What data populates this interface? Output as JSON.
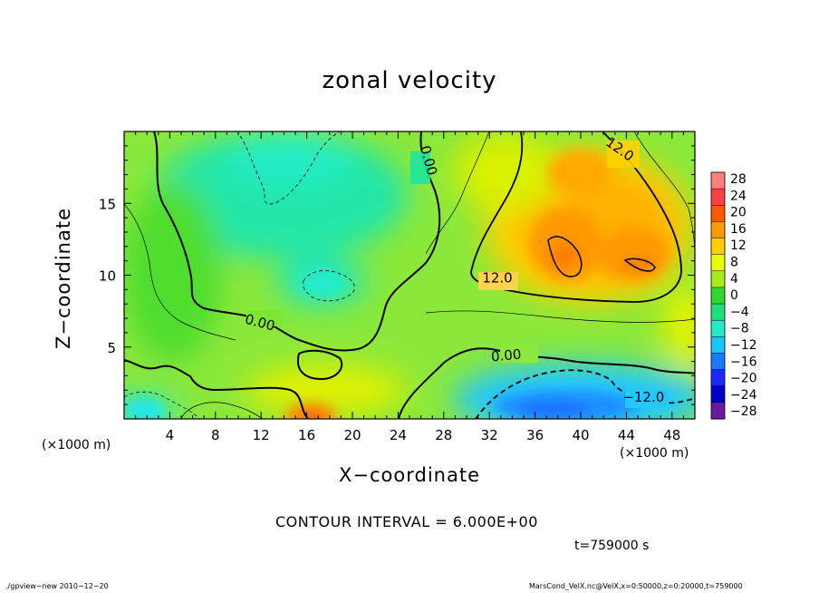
{
  "chart_data": {
    "type": "heatmap",
    "title": "zonal velocity",
    "xlabel": "X−coordinate",
    "ylabel": "Z−coordinate",
    "x_scale_label": "(×1000 m)",
    "x_ticks": [
      4,
      8,
      12,
      16,
      20,
      24,
      28,
      32,
      36,
      40,
      44,
      48
    ],
    "y_ticks": [
      5,
      10,
      15
    ],
    "xlim": [
      0,
      50
    ],
    "ylim": [
      0,
      20
    ],
    "grid": false,
    "contour_interval_text": "CONTOUR INTERVAL = 6.000E+00",
    "time_text": "t=759000 s",
    "contour_labels": [
      "0.00",
      "0.00",
      "0.00",
      "12.0",
      "12.0",
      "−12.0"
    ],
    "colorbar": {
      "labels": [
        "28",
        "24",
        "20",
        "16",
        "12",
        "8",
        "4",
        "0",
        "−4",
        "−8",
        "−12",
        "−16",
        "−20",
        "−24",
        "−28"
      ],
      "colors": [
        "#ff7f7f",
        "#ff4040",
        "#ff5a00",
        "#ff9a00",
        "#ffd000",
        "#e8ff00",
        "#a6ec1a",
        "#2ed62e",
        "#20e07a",
        "#22ecc8",
        "#1ac4ff",
        "#1a7aff",
        "#1a2aff",
        "#0000c8",
        "#6a1aa0"
      ]
    },
    "regions": [
      {
        "name": "eastern jet core",
        "x_range": [
          31,
          49
        ],
        "z_range": [
          8,
          19
        ],
        "value": 15
      },
      {
        "name": "core maximum west",
        "x": 38,
        "z": 11.5,
        "value": 18
      },
      {
        "name": "core maximum east",
        "x": 45,
        "z": 11,
        "value": 18
      },
      {
        "name": "western easterly patch",
        "x_range": [
          10,
          26
        ],
        "z_range": [
          14,
          20
        ],
        "value": -7
      },
      {
        "name": "mid easterly patch",
        "x_range": [
          14,
          22
        ],
        "z_range": [
          8,
          11
        ],
        "value": -6
      },
      {
        "name": "surface easterly",
        "x_range": [
          30,
          49
        ],
        "z_range": [
          0,
          3.5
        ],
        "value": -15
      },
      {
        "name": "surface easterly west",
        "x_range": [
          0,
          6
        ],
        "z_range": [
          0,
          2
        ],
        "value": -8
      },
      {
        "name": "surface westerly",
        "x_range": [
          15,
          20
        ],
        "z_range": [
          0,
          1.2
        ],
        "value": 14
      }
    ]
  },
  "footer": {
    "left": "./gpview−new   2010−12−20",
    "right": "MarsCond_VelX.nc@VelX,x=0:50000,z=0:20000,t=759000"
  }
}
